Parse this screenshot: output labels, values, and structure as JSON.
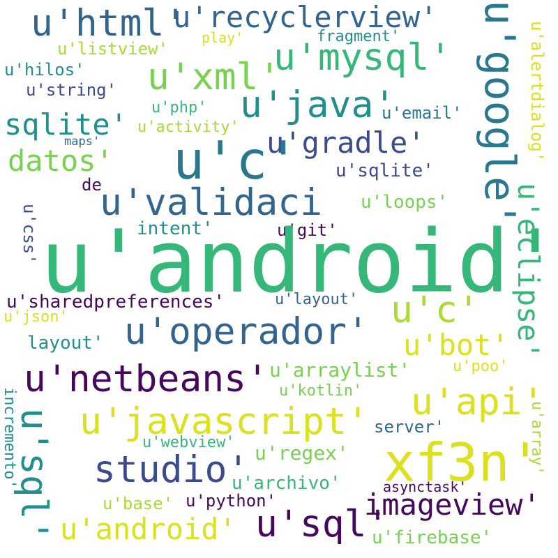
{
  "palette": {
    "purple": "#46085c",
    "indigo": "#3b4b8c",
    "blue": "#33648d",
    "teal": "#2a788e",
    "teal_green": "#21908d",
    "green": "#35b779",
    "light_green": "#78d150",
    "yellow_green": "#a8db34",
    "yellow": "#dbe11e"
  },
  "words": {
    "w_html": "u'html'",
    "w_recyclerview": "u'recyclerview'",
    "w_google": "u'google'",
    "w_fragment": "fragment'",
    "w_play": "play'",
    "w_listview": "u'listview'",
    "w_mysql": "u'mysql'",
    "w_alertdialog": "u'alertdialog'",
    "w_hilos": "u'hilos'",
    "w_xml": "u'xml'",
    "w_string": "u'string'",
    "w_java": "u'java'",
    "w_php": "u'php'",
    "w_email": "u'email'",
    "w_sqlite_q": "sqlite'",
    "w_activity": "u'activity'",
    "w_gradle": "u'gradle'",
    "w_maps": "maps'",
    "w_c_big": "u'c'",
    "w_datos": "datos'",
    "w_sqlite_u": "u'sqlite'",
    "w_de": "de",
    "w_validaci": "u'validaci",
    "w_loops": "u'loops'",
    "w_css": "u'css'",
    "w_intent": "intent'",
    "w_git": "u'git'",
    "w_eclipse": "u'eclipse'",
    "w_android_big": "u'android'",
    "w_sharedpreferences": "u'sharedpreferences'",
    "w_layout_u": "u'layout'",
    "w_c_mid": "u'c'",
    "w_json": "u'json'",
    "w_operador": "u'operador'",
    "w_layout_q": "layout'",
    "w_bot": "u'bot'",
    "w_netbeans": "u'netbeans'",
    "w_arraylist": "u'arraylist'",
    "w_poo": "u'poo'",
    "w_incremento": "incremento'",
    "w_sql_vert": "u'sql'",
    "w_kotlin": "u'kotlin'",
    "w_api": "u'api'",
    "w_javascript": "u'javascript'",
    "w_server": "server'",
    "w_array": "u'array'",
    "w_webview": "u'webview'",
    "w_xf3n": "xf3n'",
    "w_regex": "u'regex'",
    "w_studio": "studio'",
    "w_archivo": "u'archivo'",
    "w_asynctask": "asynctask'",
    "w_imageview": "imageview'",
    "w_base": "u'base'",
    "w_python": "u'python'",
    "w_sql_horiz": "u'sql'",
    "w_android_small": "u'android'",
    "w_firebase": "u'firebase'"
  }
}
